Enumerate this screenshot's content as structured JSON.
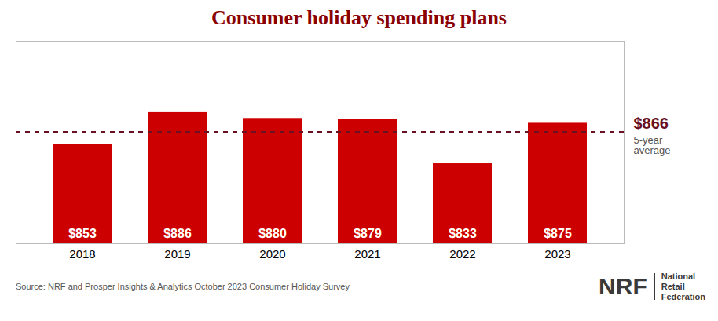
{
  "chart_data": {
    "type": "bar",
    "title": "Consumer holiday spending plans",
    "title_color": "#8B0000",
    "categories": [
      "2018",
      "2019",
      "2020",
      "2021",
      "2022",
      "2023"
    ],
    "values": [
      853,
      886,
      880,
      879,
      833,
      875
    ],
    "value_labels": [
      "$853",
      "$886",
      "$880",
      "$879",
      "$833",
      "$875"
    ],
    "data_labels": true,
    "label_color": "#FFFFFF",
    "color": "#CC0000",
    "ylim": [
      750,
      960
    ],
    "tick_labels": "x",
    "grid": false,
    "reference_line": {
      "value": 866,
      "label": "$866",
      "note": [
        "5-year",
        "average"
      ],
      "color": "#6B1020"
    },
    "source": "Source: NRF and Prosper Insights & Analytics October 2023 Consumer Holiday Survey",
    "logo": {
      "main": "NRF",
      "lines": [
        "National",
        "Retail",
        "Federation"
      ],
      "color": "#3A3A3A"
    }
  }
}
